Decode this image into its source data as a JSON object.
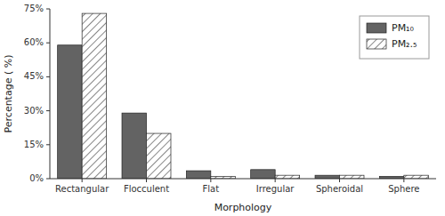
{
  "chart_data": {
    "type": "bar",
    "x_label": "Morphology",
    "y_label": "Percentage ( %)",
    "categories": [
      "Rectangular",
      "Flocculent",
      "Flat",
      "Irregular",
      "Spheroidal",
      "Sphere"
    ],
    "series": [
      {
        "name": "PM₁₀",
        "color": "#636363",
        "values": [
          59,
          29,
          3.5,
          4,
          1.5,
          1.0
        ]
      },
      {
        "name": "PM₂.₅",
        "color": "#ffffff",
        "values": [
          73,
          20,
          1.0,
          1.5,
          1.5,
          1.5
        ]
      }
    ],
    "ylim": [
      0,
      75
    ],
    "yticks": [
      {
        "value": 0,
        "label": "0%"
      },
      {
        "value": 15,
        "label": "15%"
      },
      {
        "value": 30,
        "label": "30%"
      },
      {
        "value": 45,
        "label": "45%"
      },
      {
        "value": 60,
        "label": "60%"
      },
      {
        "value": 75,
        "label": "75%"
      }
    ],
    "grid": false,
    "legend": "upper right"
  }
}
